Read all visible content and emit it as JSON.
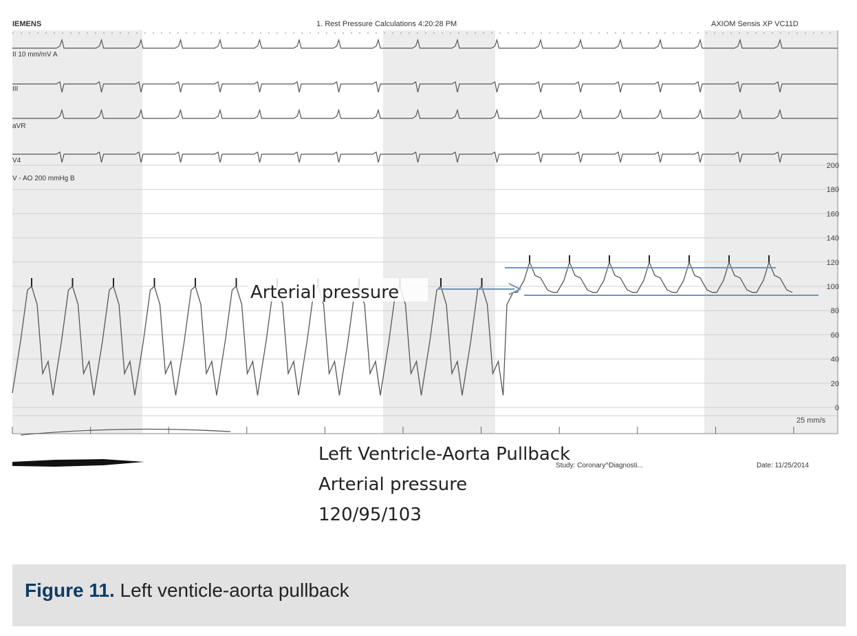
{
  "header": {
    "vendor": "IEMENS",
    "title": "1. Rest Pressure Calculations 4:20:28 PM",
    "system": "AXIOM Sensis XP VC11D"
  },
  "leads": {
    "lead_ii": "II 10 mm/mV  A",
    "lead_iii": "III",
    "lead_avr": "aVR",
    "lead_v4": "V4",
    "pressure_channel": "V - AO  200 mmHg  B"
  },
  "speed": "25 mm/s",
  "footer": {
    "study": "Study: Coronary^Diagnosti...",
    "date": "Date: 11/25/2014"
  },
  "annotation": {
    "arrow_label": "Arterial pressure",
    "line1": "Left Ventricle-Aorta Pullback",
    "line2": "Arterial pressure",
    "line3": "120/95/103"
  },
  "caption": {
    "number": "Figure 11.",
    "text": " Left venticle-aorta pullback"
  },
  "colors": {
    "trace": "#555555",
    "shade": "#ececec",
    "grid": "#d0d0d0",
    "annotation_line": "#6f94b8",
    "caption_bg": "#e2e2e2",
    "caption_num": "#0d3b66"
  },
  "chart_data": {
    "type": "line",
    "title": "",
    "xlabel": "",
    "ylabel": "",
    "y_unit": "mmHg",
    "ylim": [
      0,
      200
    ],
    "yticks": [
      200,
      180,
      160,
      140,
      120,
      100,
      80,
      60,
      40,
      20,
      0
    ],
    "grid": true,
    "series": [
      {
        "name": "",
        "segments": [
          {
            "phase": "left ventricle",
            "beats": 12,
            "systolic": 100,
            "diastolic": 10
          },
          {
            "phase": "aorta",
            "beats": 7,
            "systolic": 120,
            "diastolic": 95,
            "mean": 103
          }
        ]
      }
    ]
  }
}
